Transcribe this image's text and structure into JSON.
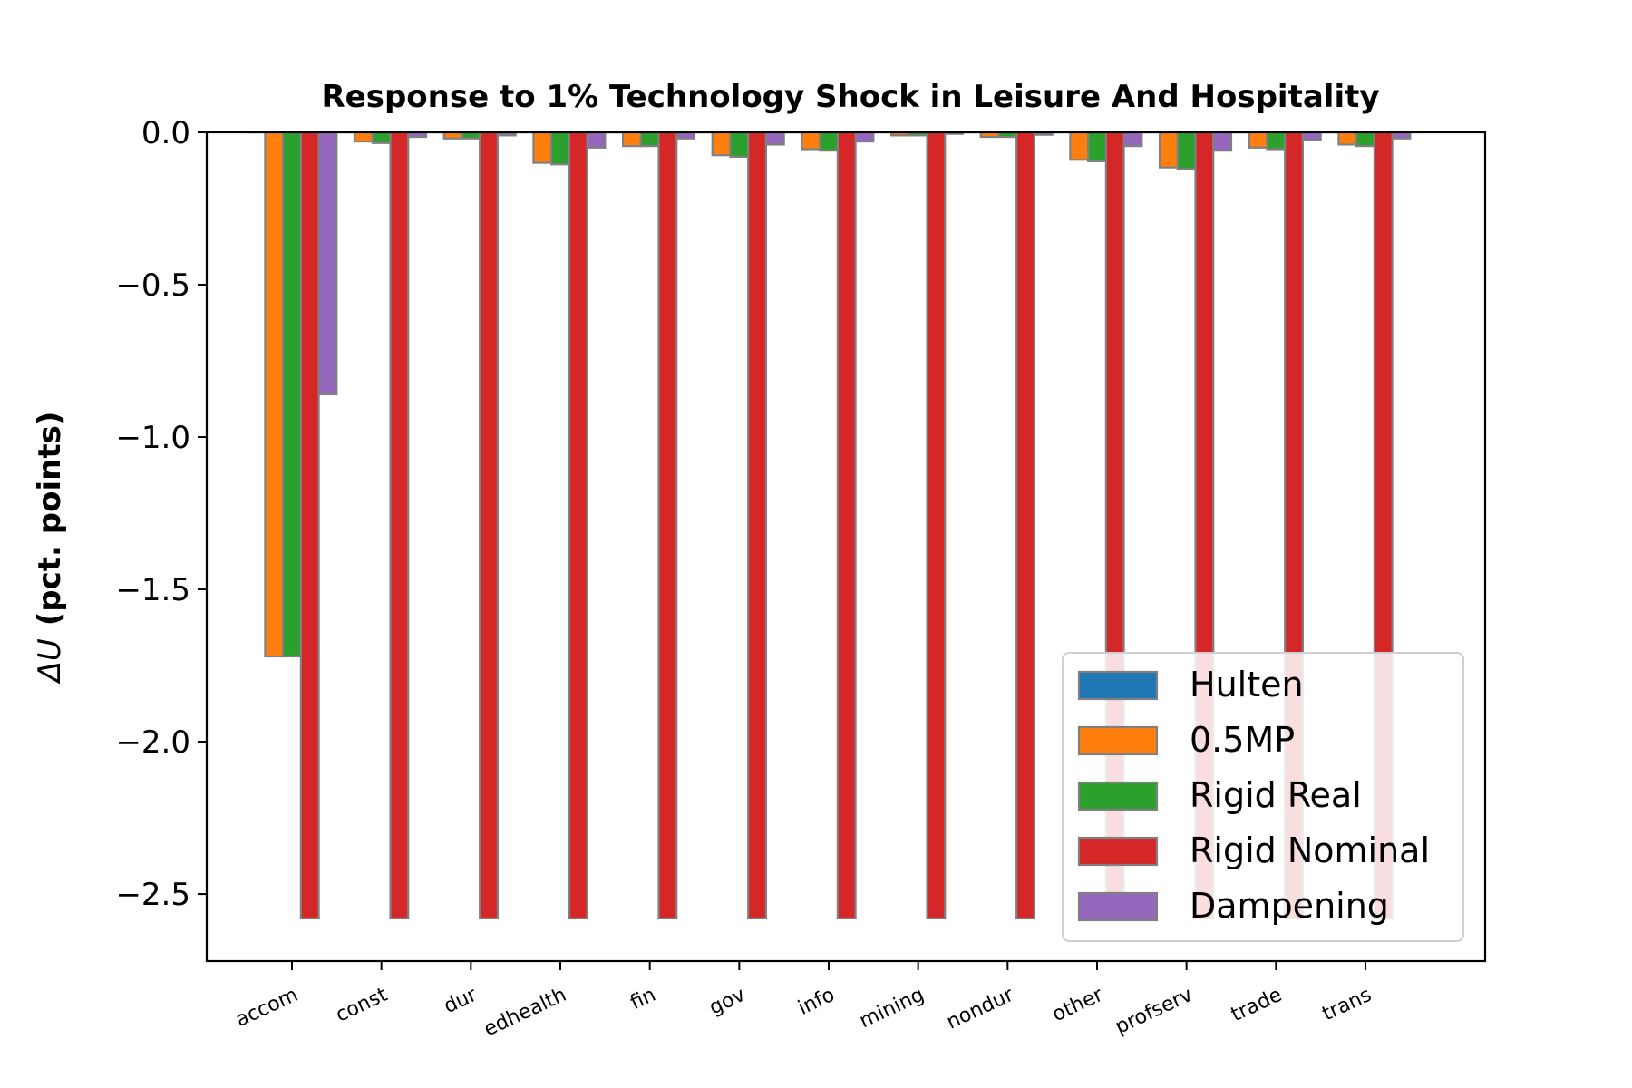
{
  "chart_data": {
    "type": "bar",
    "title": "Response to 1% Technology Shock in Leisure And Hospitality",
    "ylabel_math": "ΔU",
    "ylabel_text": "(pct. points)",
    "xlabel": "",
    "ylim": [
      -2.72,
      0.0
    ],
    "yticks": [
      0.0,
      -0.5,
      -1.0,
      -1.5,
      -2.0,
      -2.5
    ],
    "ytick_labels": [
      "0.0",
      "−0.5",
      "−1.0",
      "−1.5",
      "−2.0",
      "−2.5"
    ],
    "grid": false,
    "legend_position": "lower-right",
    "categories": [
      "accom",
      "const",
      "dur",
      "edhealth",
      "fin",
      "gov",
      "info",
      "mining",
      "nondur",
      "other",
      "profserv",
      "trade",
      "trans"
    ],
    "series": [
      {
        "name": "Hulten",
        "color": "#1f77b4",
        "values": [
          0,
          0,
          0,
          0,
          0,
          0,
          0,
          0,
          0,
          0,
          0,
          0,
          0
        ]
      },
      {
        "name": "0.5MP",
        "color": "#ff7f0e",
        "values": [
          -1.72,
          -0.03,
          -0.02,
          -0.1,
          -0.045,
          -0.075,
          -0.055,
          -0.01,
          -0.015,
          -0.09,
          -0.115,
          -0.05,
          -0.04
        ]
      },
      {
        "name": "Rigid Real",
        "color": "#2ca02c",
        "values": [
          -1.72,
          -0.035,
          -0.02,
          -0.105,
          -0.045,
          -0.08,
          -0.06,
          -0.01,
          -0.015,
          -0.095,
          -0.12,
          -0.055,
          -0.045
        ]
      },
      {
        "name": "Rigid Nominal",
        "color": "#d62728",
        "values": [
          -2.58,
          -2.58,
          -2.58,
          -2.58,
          -2.58,
          -2.58,
          -2.58,
          -2.58,
          -2.58,
          -2.58,
          -2.58,
          -2.58,
          -2.58
        ]
      },
      {
        "name": "Dampening",
        "color": "#9467bd",
        "values": [
          -0.86,
          -0.015,
          -0.01,
          -0.05,
          -0.02,
          -0.04,
          -0.03,
          -0.005,
          -0.008,
          -0.045,
          -0.06,
          -0.025,
          -0.02
        ]
      }
    ]
  }
}
